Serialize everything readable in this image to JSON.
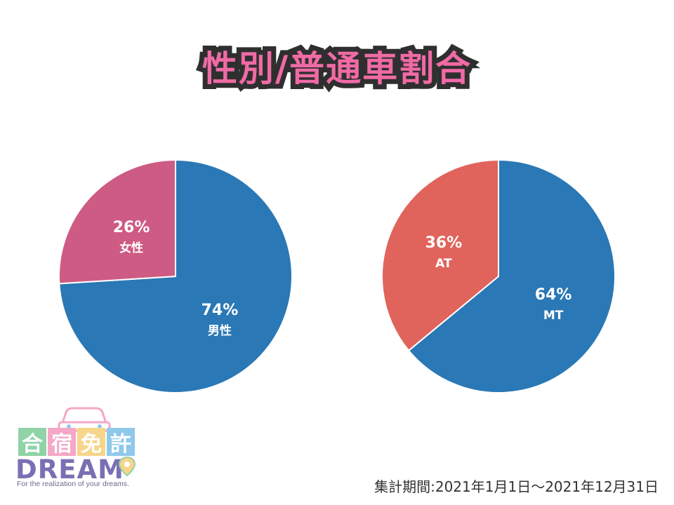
{
  "title": "性別/普通車割合",
  "chart_data": [
    {
      "type": "pie",
      "slices": [
        {
          "label": "男性",
          "value": 74,
          "pct_text": "74%",
          "color": "#2a78b5"
        },
        {
          "label": "女性",
          "value": 26,
          "pct_text": "26%",
          "color": "#cd5b83"
        }
      ]
    },
    {
      "type": "pie",
      "slices": [
        {
          "label": "MT",
          "value": 64,
          "pct_text": "64%",
          "color": "#2a78b5"
        },
        {
          "label": "AT",
          "value": 36,
          "pct_text": "36%",
          "color": "#e0645c"
        }
      ]
    }
  ],
  "logo": {
    "tiles": [
      "合",
      "宿",
      "免",
      "許"
    ],
    "tile_colors": [
      "#8fd3a6",
      "#f4a7c6",
      "#f7d58a",
      "#8ec9ec"
    ],
    "word": "DREAM",
    "tagline": "For the realization of your dreams."
  },
  "period": "集計期間:2021年1月1日～2021年12月31日"
}
